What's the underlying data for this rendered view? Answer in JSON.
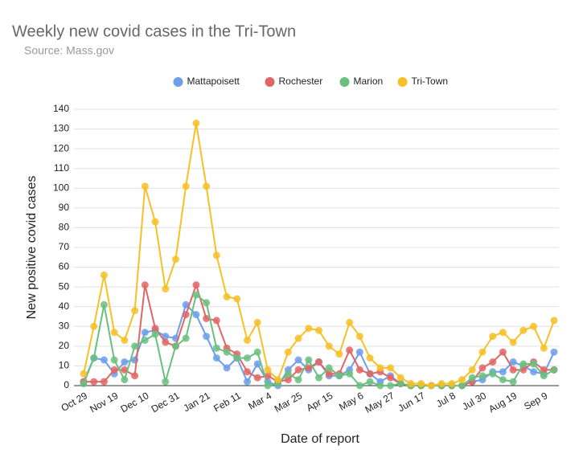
{
  "chart_data": {
    "type": "line",
    "title": "Weekly new covid cases in the Tri-Town",
    "subtitle": "Source: Mass.gov",
    "x_label": "Date of report",
    "y_label": "New positive covid cases",
    "categories": [
      "Oct 29",
      null,
      null,
      "Nov 19",
      null,
      null,
      "Dec 10",
      null,
      null,
      "Dec 31",
      null,
      null,
      "Jan 21",
      null,
      null,
      "Feb 11",
      null,
      null,
      "Mar 4",
      null,
      null,
      "Mar 25",
      null,
      null,
      "Apr 15",
      null,
      null,
      "May 6",
      null,
      null,
      "May 27",
      null,
      null,
      "Jun 17",
      null,
      null,
      "Jul 8",
      null,
      null,
      "Jul 30",
      null,
      null,
      "Aug 19",
      null,
      null,
      "Sep 9",
      null
    ],
    "series": [
      {
        "name": "Mattapoisett",
        "color": "#6d9eeb",
        "values": [
          2,
          14,
          13,
          6,
          12,
          13,
          27,
          28,
          25,
          24,
          41,
          36,
          25,
          14,
          9,
          14,
          2,
          11,
          2,
          0,
          8,
          13,
          8,
          12,
          5,
          5,
          8,
          17,
          6,
          2,
          5,
          1,
          0,
          0,
          0,
          0,
          0,
          0,
          2,
          3,
          7,
          7,
          12,
          10,
          7,
          6,
          17
        ]
      },
      {
        "name": "Rochester",
        "color": "#e06666",
        "values": [
          2,
          2,
          2,
          8,
          8,
          5,
          51,
          29,
          22,
          20,
          36,
          51,
          34,
          33,
          19,
          16,
          7,
          4,
          5,
          2,
          3,
          8,
          9,
          12,
          6,
          6,
          18,
          8,
          6,
          7,
          4,
          1,
          0,
          0,
          0,
          0,
          0,
          0,
          2,
          9,
          12,
          17,
          8,
          8,
          12,
          8,
          8
        ]
      },
      {
        "name": "Marion",
        "color": "#6abf7f",
        "values": [
          1,
          14,
          41,
          13,
          3,
          20,
          23,
          26,
          2,
          20,
          24,
          46,
          42,
          19,
          17,
          14,
          14,
          17,
          0,
          1,
          6,
          3,
          13,
          4,
          9,
          5,
          6,
          0,
          2,
          0,
          0,
          1,
          0,
          0,
          0,
          0,
          0,
          0,
          4,
          5,
          6,
          3,
          2,
          11,
          11,
          5,
          8
        ]
      },
      {
        "name": "Tri-Town",
        "color": "#f6c026",
        "values": [
          6,
          30,
          56,
          27,
          23,
          38,
          101,
          83,
          49,
          64,
          101,
          133,
          101,
          66,
          45,
          44,
          23,
          32,
          8,
          3,
          17,
          24,
          29,
          28,
          20,
          16,
          32,
          25,
          14,
          9,
          9,
          4,
          1,
          1,
          0,
          1,
          1,
          3,
          8,
          17,
          25,
          27,
          22,
          28,
          30,
          19,
          33
        ]
      }
    ],
    "ylim": [
      0,
      140
    ],
    "yticks": [
      0,
      10,
      20,
      30,
      40,
      50,
      60,
      70,
      80,
      90,
      100,
      110,
      120,
      130,
      140
    ],
    "grid": true,
    "legend": "top"
  }
}
